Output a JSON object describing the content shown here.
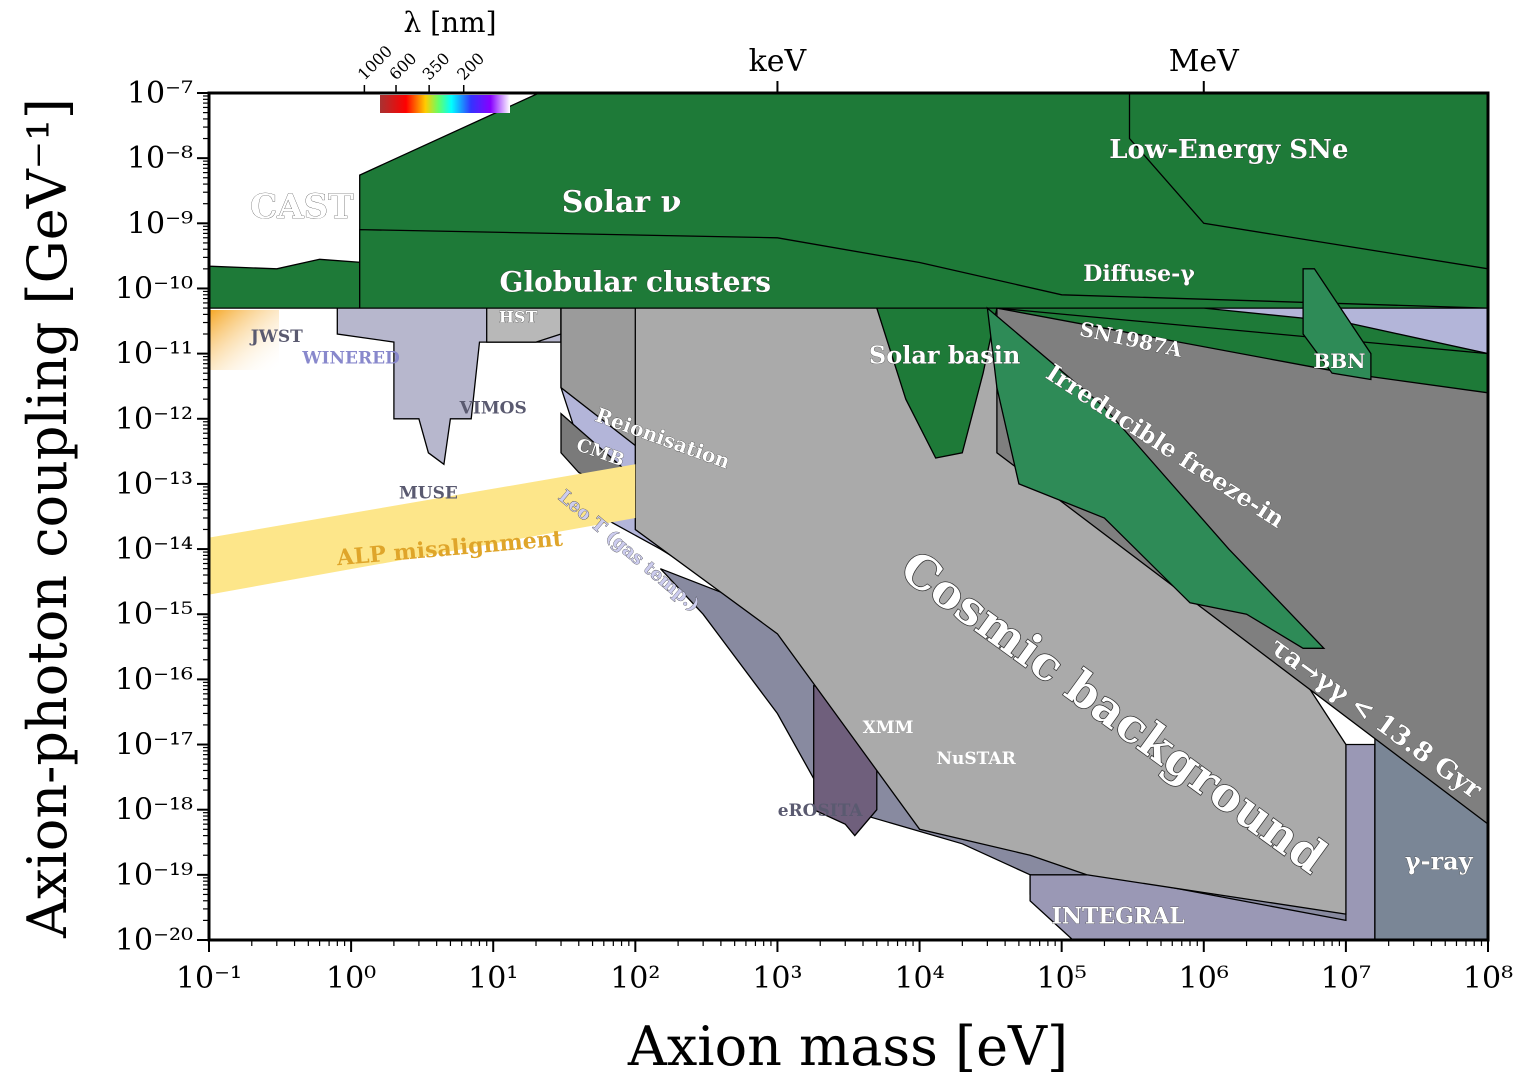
{
  "chart_data": {
    "type": "area",
    "title": "",
    "xlabel": "Axion mass [eV]",
    "ylabel": "Axion-photon coupling [GeV⁻¹]",
    "xscale": "log",
    "yscale": "log",
    "xlim": [
      0.1,
      100000000
    ],
    "ylim": [
      1e-20,
      1e-07
    ],
    "x_tick_labels": [
      "10⁻¹",
      "10⁰",
      "10¹",
      "10²",
      "10³",
      "10⁴",
      "10⁵",
      "10⁶",
      "10⁷",
      "10⁸"
    ],
    "y_tick_labels": [
      "10⁻⁷",
      "10⁻⁸",
      "10⁻⁹",
      "10⁻¹⁰",
      "10⁻¹¹",
      "10⁻¹²",
      "10⁻¹³",
      "10⁻¹⁴",
      "10⁻¹⁵",
      "10⁻¹⁶",
      "10⁻¹⁷",
      "10⁻¹⁸",
      "10⁻¹⁹",
      "10⁻²⁰"
    ],
    "top_axis": {
      "wavelength_label": "λ [nm]",
      "wavelength_ticks": [
        "1000",
        "600",
        "350",
        "200"
      ],
      "energy_ticks": [
        {
          "label": "keV",
          "mass": 1000
        },
        {
          "label": "MeV",
          "mass": 1000000
        }
      ]
    },
    "regions": [
      {
        "name": "CAST",
        "label": "CAST",
        "color": "#1e7a38",
        "points": [
          [
            0.1,
            1e-07
          ],
          [
            0.1,
            5e-11
          ],
          [
            1.2,
            5e-11
          ],
          [
            1.2,
            2.5e-10
          ],
          [
            0.6,
            2.8e-10
          ],
          [
            0.3,
            2e-10
          ],
          [
            0.1,
            2.2e-10
          ]
        ]
      },
      {
        "name": "solar-nu",
        "label": "Solar ν",
        "color": "#1e7a38",
        "points": [
          [
            1.15,
            5.5e-09
          ],
          [
            21,
            1e-07
          ],
          [
            100000000,
            1e-07
          ],
          [
            100000000,
            5e-11
          ],
          [
            1.15,
            5e-11
          ]
        ]
      },
      {
        "name": "globular-clusters",
        "label": "Globular clusters",
        "color": "#1e7a38",
        "points": [
          [
            1.15,
            8e-10
          ],
          [
            1000,
            6e-10
          ],
          [
            10000,
            2.5e-10
          ],
          [
            100000,
            8e-11
          ],
          [
            100000000,
            5e-11
          ],
          [
            1.15,
            5e-11
          ]
        ]
      },
      {
        "name": "low-energy-sne",
        "label": "Low-Energy SNe",
        "color": "#1e7a38",
        "points": [
          [
            300000,
            1e-07
          ],
          [
            100000000,
            1e-07
          ],
          [
            100000000,
            2e-10
          ],
          [
            1000000,
            1e-09
          ],
          [
            300000,
            2e-08
          ]
        ]
      },
      {
        "name": "optical-ir",
        "label": "",
        "color": "#b7b7cd",
        "points": [
          [
            0.8,
            5e-11
          ],
          [
            30,
            5e-11
          ],
          [
            30,
            1.5e-11
          ],
          [
            8,
            1.5e-11
          ],
          [
            7,
            1e-12
          ],
          [
            5,
            1e-12
          ],
          [
            4.5,
            2e-13
          ],
          [
            3.5,
            3e-13
          ],
          [
            3,
            1e-12
          ],
          [
            2,
            1e-12
          ],
          [
            2,
            1.5e-11
          ],
          [
            0.8,
            2e-11
          ]
        ]
      },
      {
        "name": "hst",
        "label": "HST",
        "color": "#b8b8b8",
        "points": [
          [
            9,
            5e-11
          ],
          [
            30,
            5e-11
          ],
          [
            30,
            2e-11
          ],
          [
            20,
            1.5e-11
          ],
          [
            9,
            1.5e-11
          ]
        ]
      },
      {
        "name": "leo-t",
        "label": "Leo T (gas temp.)",
        "color": "#b3b5d9",
        "points": [
          [
            30,
            5e-11
          ],
          [
            30,
            3e-12
          ],
          [
            60,
            3e-14
          ],
          [
            150,
            1e-14
          ],
          [
            500,
            2e-15
          ],
          [
            1000,
            1e-15
          ],
          [
            10000,
            3e-16
          ],
          [
            100000,
            1e-16
          ],
          [
            100000000,
            1e-16
          ],
          [
            100000000,
            5e-11
          ]
        ]
      },
      {
        "name": "reionisation",
        "label": "Reionisation",
        "color": "#9b9b9b",
        "points": [
          [
            30,
            5e-11
          ],
          [
            420,
            5e-11
          ],
          [
            420,
            1.2e-13
          ],
          [
            200,
            1.2e-13
          ],
          [
            30,
            3e-12
          ]
        ]
      },
      {
        "name": "cmb",
        "label": "CMB",
        "color": "#7a7a7a",
        "points": [
          [
            30,
            1.2e-12
          ],
          [
            100,
            1.2e-13
          ],
          [
            100,
            5e-14
          ],
          [
            40,
            1.5e-13
          ],
          [
            30,
            3e-13
          ]
        ]
      },
      {
        "name": "x-ray",
        "label": "",
        "color": "#888aa0",
        "points": [
          [
            150,
            5e-15
          ],
          [
            1000,
            1e-15
          ],
          [
            10000,
            3e-16
          ],
          [
            100000,
            2e-16
          ],
          [
            100000000,
            1e-19
          ],
          [
            100000000,
            1e-20
          ],
          [
            120000,
            1e-20
          ],
          [
            60000,
            5e-20
          ],
          [
            60000,
            1e-19
          ],
          [
            20000,
            3e-19
          ],
          [
            3000,
            1e-18
          ],
          [
            1800,
            3e-18
          ],
          [
            1000,
            3e-17
          ],
          [
            300,
            1e-15
          ]
        ]
      },
      {
        "name": "erosita",
        "label": "eROSITA",
        "color": "#6f5f7c",
        "points": [
          [
            1800,
            8e-17
          ],
          [
            5000,
            5e-17
          ],
          [
            5000,
            1e-18
          ],
          [
            3500,
            4e-19
          ],
          [
            3000,
            6e-19
          ],
          [
            1800,
            1e-18
          ]
        ]
      },
      {
        "name": "integral",
        "label": "INTEGRAL",
        "color": "#9a98b5",
        "points": [
          [
            60000,
            1e-19
          ],
          [
            200000,
            1e-19
          ],
          [
            10000000,
            2e-20
          ],
          [
            10000000,
            1e-17
          ],
          [
            16000000,
            1e-17
          ],
          [
            16000000,
            1e-20
          ],
          [
            120000,
            1e-20
          ],
          [
            60000,
            4e-20
          ]
        ]
      },
      {
        "name": "gamma-ray",
        "label": "γ-ray",
        "color": "#7a8696",
        "points": [
          [
            16000000,
            1e-16
          ],
          [
            100000000,
            1e-16
          ],
          [
            100000000,
            1e-20
          ],
          [
            16000000,
            1e-20
          ]
        ]
      },
      {
        "name": "cosmic-background",
        "label": "Cosmic background",
        "color": "#aaaaaa",
        "points": [
          [
            100,
            5e-11
          ],
          [
            100000,
            5e-11
          ],
          [
            10000000,
            1e-17
          ],
          [
            10000000,
            2.5e-20
          ],
          [
            150000,
            1e-19
          ],
          [
            60000,
            2e-19
          ],
          [
            10000,
            5e-19
          ],
          [
            1000,
            5e-16
          ],
          [
            100,
            2e-14
          ],
          [
            100,
            1.2e-13
          ]
        ]
      },
      {
        "name": "lifetime",
        "label": "τa→γγ < 13.8 Gyr",
        "color": "#7f7f7f",
        "points": [
          [
            35000,
            5e-11
          ],
          [
            100000000,
            5e-12
          ],
          [
            100000000,
            6e-19
          ],
          [
            35000,
            3e-13
          ]
        ]
      },
      {
        "name": "solar-basin",
        "label": "Solar basin",
        "color": "#1e7a38",
        "points": [
          [
            5000,
            5e-11
          ],
          [
            35000,
            5e-11
          ],
          [
            28000,
            5e-12
          ],
          [
            20000,
            3e-13
          ],
          [
            13000,
            2.5e-13
          ],
          [
            8000,
            2e-12
          ],
          [
            5000,
            5e-11
          ]
        ]
      },
      {
        "name": "irreducible-freeze-in",
        "label": "Irreducible freeze-in",
        "color": "#2e8b57",
        "points": [
          [
            30000,
            5e-11
          ],
          [
            200000,
            1.5e-12
          ],
          [
            1500000,
            1e-14
          ],
          [
            7000000,
            3e-16
          ],
          [
            5000000,
            3e-16
          ],
          [
            2000000,
            1e-15
          ],
          [
            800000,
            1.5e-15
          ],
          [
            200000,
            3e-14
          ],
          [
            50000,
            1e-13
          ],
          [
            35000,
            3e-12
          ]
        ]
      },
      {
        "name": "diffuse-gamma",
        "label": "Diffuse-γ",
        "color": "#1e7a38",
        "points": [
          [
            35000,
            5e-11
          ],
          [
            1000000,
            5e-11
          ],
          [
            10000000,
            3e-11
          ],
          [
            100000000,
            1e-11
          ],
          [
            100000000,
            5e-12
          ],
          [
            35000,
            5e-11
          ]
        ]
      },
      {
        "name": "sn1987a",
        "label": "SN1987A",
        "color": "#1e7a38",
        "points": [
          [
            35000,
            5e-11
          ],
          [
            10000000,
            5e-12
          ],
          [
            100000000,
            2.5e-12
          ],
          [
            100000000,
            1e-11
          ],
          [
            35000,
            5e-11
          ]
        ]
      },
      {
        "name": "bbn",
        "label": "BBN",
        "color": "#2e8b57",
        "points": [
          [
            5000000,
            2e-10
          ],
          [
            6000000,
            2e-10
          ],
          [
            15000000,
            1e-11
          ],
          [
            15000000,
            4e-12
          ],
          [
            8000000,
            5e-12
          ],
          [
            5000000,
            2e-11
          ]
        ]
      },
      {
        "name": "alp-misalignment",
        "label": "ALP misalignment",
        "color": "#fde68a",
        "points": [
          [
            0.1,
            1.5e-14
          ],
          [
            100,
            2e-13
          ],
          [
            100,
            3e-14
          ],
          [
            0.1,
            2e-15
          ]
        ]
      }
    ],
    "labels": [
      {
        "name": "label-jwst",
        "text": "JWST",
        "x": 0.3,
        "y": 1.5e-11,
        "color": "#5a5a70"
      },
      {
        "name": "label-winered",
        "text": "WINERED",
        "x": 1.0,
        "y": 7e-12,
        "color": "#8888cc"
      },
      {
        "name": "label-muse",
        "text": "MUSE",
        "x": 3.5,
        "y": 6e-14,
        "color": "#5a5a70"
      },
      {
        "name": "label-vimos",
        "text": "VIMOS",
        "x": 10,
        "y": 1.2e-12,
        "color": "#5a5a70"
      },
      {
        "name": "label-xmm",
        "text": "XMM",
        "x": 6000,
        "y": 1.5e-17,
        "color": "#ffffff"
      },
      {
        "name": "label-nustar",
        "text": "NuSTAR",
        "x": 25000,
        "y": 5e-18,
        "color": "#ffffff"
      },
      {
        "name": "label-erosita",
        "text": "eROSITA",
        "x": 2000,
        "y": 8e-19,
        "color": "#5a5a70"
      }
    ]
  }
}
